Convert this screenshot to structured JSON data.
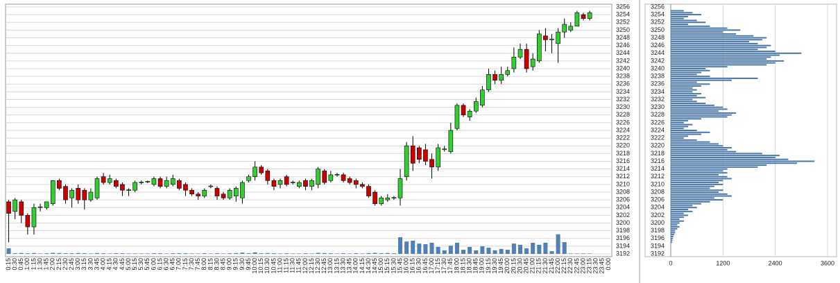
{
  "chart_data": [
    {
      "type": "candlestick",
      "categories": [
        "0:15",
        "0:30",
        "0:45",
        "1:00",
        "1:15",
        "1:30",
        "1:45",
        "2:00",
        "2:15",
        "2:30",
        "2:45",
        "3:00",
        "3:15",
        "3:30",
        "3:45",
        "4:00",
        "4:15",
        "4:30",
        "4:45",
        "5:00",
        "5:15",
        "5:30",
        "5:45",
        "6:00",
        "6:15",
        "6:30",
        "6:45",
        "7:00",
        "7:15",
        "7:30",
        "7:45",
        "8:00",
        "8:15",
        "8:30",
        "8:45",
        "9:00",
        "9:15",
        "9:30",
        "9:45",
        "10:00",
        "10:15",
        "10:30",
        "10:45",
        "11:00",
        "11:15",
        "11:30",
        "11:45",
        "12:00",
        "12:15",
        "12:30",
        "12:45",
        "13:00",
        "13:15",
        "13:30",
        "13:45",
        "14:00",
        "14:15",
        "14:30",
        "14:45",
        "15:00",
        "15:15",
        "15:30",
        "15:45",
        "16:00",
        "16:15",
        "16:30",
        "16:45",
        "17:00",
        "17:15",
        "17:30",
        "17:45",
        "18:00",
        "18:15",
        "18:30",
        "18:45",
        "19:00",
        "19:15",
        "19:30",
        "19:45",
        "20:00",
        "20:15",
        "20:30",
        "20:45",
        "21:00",
        "21:15",
        "21:30",
        "21:45",
        "22:00",
        "22:15",
        "22:30",
        "22:45",
        "23:00",
        "23:15",
        "23:30",
        "23:45",
        "0:00"
      ],
      "open": [
        3205.5,
        3203,
        3205.5,
        3202,
        3199,
        3204,
        3204,
        3205,
        3211,
        3209.5,
        3206.5,
        3209,
        3208.5,
        3206,
        3206.5,
        3212,
        3210.5,
        3211,
        3210,
        3208.5,
        3208.5,
        3210.5,
        3210.7,
        3210,
        3211.5,
        3209.5,
        3210,
        3211,
        3210,
        3208.5,
        3207.5,
        3207,
        3209.5,
        3209,
        3207.5,
        3206.5,
        3207,
        3206.5,
        3211,
        3212,
        3214.5,
        3213.5,
        3211,
        3210,
        3212,
        3210.5,
        3209.5,
        3211,
        3209.5,
        3210,
        3213.5,
        3211,
        3212.5,
        3212.5,
        3211.5,
        3211,
        3210,
        3209.5,
        3208,
        3205,
        3206,
        3206.5,
        3206.5,
        3212,
        3220,
        3219.5,
        3219,
        3216.5,
        3214.5,
        3219,
        3218.5,
        3224.5,
        3230.5,
        3227.5,
        3229,
        3230.5,
        3234.5,
        3238.5,
        3237,
        3238.5,
        3240,
        3243,
        3245,
        3240.5,
        3242,
        3248.5,
        3247.5,
        3246.5,
        3249.5,
        3250,
        3251,
        3254,
        3253,
        null,
        null,
        null
      ],
      "high": [
        3206,
        3206.5,
        3206,
        3202.5,
        3205,
        3205,
        3205.5,
        3211,
        3211.5,
        3210,
        3209,
        3210,
        3209,
        3209,
        3212,
        3213,
        3212.5,
        3211.5,
        3210.5,
        3209,
        3211,
        3211,
        3211,
        3212,
        3212,
        3212,
        3212.5,
        3211.5,
        3210.5,
        3209,
        3208,
        3209,
        3210,
        3209.5,
        3208,
        3209,
        3209.5,
        3211,
        3212.5,
        3216,
        3215,
        3214,
        3211.5,
        3211.5,
        3212.5,
        3211,
        3211,
        3211.5,
        3211.5,
        3214.5,
        3214,
        3213.5,
        3213,
        3213,
        3212,
        3211.5,
        3210.5,
        3210,
        3208.5,
        3207,
        3207.5,
        3207,
        3214,
        3221,
        3222.5,
        3220,
        3220.5,
        3218,
        3220.5,
        3220,
        3226,
        3231,
        3231,
        3229.5,
        3232.5,
        3235.5,
        3240,
        3239.5,
        3240.5,
        3240.5,
        3245.5,
        3246.5,
        3246.5,
        3244,
        3250,
        3250.5,
        3249,
        3250.5,
        3253,
        3252,
        3255,
        3254.5,
        3255,
        null,
        null,
        null
      ],
      "low": [
        3195,
        3201,
        3200,
        3197,
        3197,
        3203,
        3203.5,
        3204.5,
        3208.5,
        3205,
        3204,
        3205,
        3203.5,
        3205.5,
        3206,
        3210,
        3210,
        3209,
        3207,
        3207,
        3208,
        3210,
        3210.3,
        3209.5,
        3209,
        3209,
        3209.5,
        3208.5,
        3207,
        3207,
        3206,
        3206.5,
        3209,
        3206,
        3206,
        3206,
        3205.5,
        3205,
        3210.5,
        3211,
        3212.5,
        3210,
        3208.5,
        3209,
        3209.5,
        3210,
        3209,
        3208.5,
        3208.5,
        3209,
        3210,
        3210.5,
        3212,
        3210.5,
        3210,
        3209,
        3209,
        3206.5,
        3204.5,
        3204.5,
        3205.5,
        3206,
        3204.5,
        3211,
        3213.5,
        3215.5,
        3215,
        3211.5,
        3213.5,
        3218.5,
        3218,
        3224,
        3227.5,
        3226.5,
        3228.5,
        3230,
        3234,
        3236,
        3236,
        3238,
        3239,
        3242.5,
        3239,
        3239.5,
        3241.5,
        3244.5,
        3244,
        3241.5,
        3248,
        3249.5,
        3251,
        3252.5,
        3252.5,
        null,
        null,
        null
      ],
      "close": [
        3202.5,
        3206,
        3202,
        3199,
        3204,
        3204.2,
        3205.5,
        3211,
        3209,
        3206,
        3208.5,
        3206,
        3206,
        3208,
        3211.5,
        3210.5,
        3211.5,
        3209.5,
        3208.5,
        3208.6,
        3210.5,
        3210.6,
        3210.8,
        3211.5,
        3209.5,
        3211,
        3211.5,
        3209,
        3208.5,
        3207.5,
        3207,
        3208.5,
        3209.6,
        3207,
        3206.5,
        3208.5,
        3209,
        3210.5,
        3212,
        3214.5,
        3213,
        3211,
        3209.5,
        3211,
        3210,
        3210.6,
        3210.5,
        3209.5,
        3211,
        3214,
        3210.5,
        3212.5,
        3212.6,
        3211,
        3210.5,
        3210,
        3209.5,
        3207,
        3205,
        3206.5,
        3206.5,
        3206.6,
        3211.5,
        3220,
        3215.5,
        3216.5,
        3216,
        3214.5,
        3219.5,
        3219.2,
        3224,
        3230.5,
        3228,
        3229,
        3231.5,
        3234.5,
        3238.5,
        3237,
        3238.5,
        3239.5,
        3243,
        3245,
        3240,
        3242.5,
        3249,
        3247.5,
        3247.7,
        3249.5,
        3251.5,
        3251,
        3254.5,
        3253,
        3254.5,
        null,
        null,
        null
      ],
      "volume": [
        270,
        30,
        40,
        30,
        40,
        20,
        30,
        50,
        40,
        30,
        30,
        40,
        30,
        20,
        40,
        30,
        20,
        30,
        30,
        20,
        20,
        20,
        20,
        30,
        30,
        20,
        30,
        30,
        30,
        20,
        20,
        30,
        20,
        30,
        20,
        30,
        40,
        60,
        30,
        70,
        30,
        40,
        30,
        20,
        30,
        20,
        20,
        30,
        20,
        50,
        40,
        30,
        20,
        30,
        20,
        30,
        20,
        40,
        50,
        30,
        40,
        30,
        810,
        600,
        640,
        500,
        470,
        540,
        340,
        170,
        400,
        540,
        200,
        340,
        170,
        370,
        300,
        170,
        240,
        200,
        500,
        440,
        270,
        540,
        440,
        540,
        130,
        950,
        570,
        20,
        20,
        20,
        20,
        null,
        null,
        null
      ],
      "up_color": "#33cc33",
      "down_color": "#cc0000",
      "volume_color": "#4f7fb5",
      "ylim": [
        3192,
        3256
      ],
      "yticks": [
        3192,
        3194,
        3196,
        3198,
        3200,
        3202,
        3204,
        3206,
        3208,
        3210,
        3212,
        3214,
        3216,
        3218,
        3220,
        3222,
        3224,
        3226,
        3228,
        3230,
        3232,
        3234,
        3236,
        3238,
        3240,
        3242,
        3244,
        3246,
        3248,
        3250,
        3252,
        3254,
        3256
      ],
      "y2lim": [
        0,
        12000
      ],
      "grid": true
    },
    {
      "type": "bar",
      "orientation": "horizontal",
      "color": "#4a76a8",
      "categories": [
        3255,
        3254.5,
        3254,
        3253.5,
        3253,
        3252.5,
        3252,
        3251.5,
        3251,
        3250.5,
        3250,
        3249.5,
        3249,
        3248.5,
        3248,
        3247.5,
        3247,
        3246.5,
        3246,
        3245.5,
        3245,
        3244.5,
        3244,
        3243.5,
        3243,
        3242.5,
        3242,
        3241.5,
        3241,
        3240.5,
        3240,
        3239.5,
        3239,
        3238.5,
        3238,
        3237.5,
        3237,
        3236.5,
        3236,
        3235.5,
        3235,
        3234.5,
        3234,
        3233.5,
        3233,
        3232.5,
        3232,
        3231.5,
        3231,
        3230.5,
        3230,
        3229.5,
        3229,
        3228.5,
        3228,
        3227.5,
        3227,
        3226.5,
        3226,
        3225.5,
        3225,
        3224.5,
        3224,
        3223.5,
        3223,
        3222.5,
        3222,
        3221.5,
        3221,
        3220.5,
        3220,
        3219.5,
        3219,
        3218.5,
        3218,
        3217.5,
        3217,
        3216.5,
        3216,
        3215.5,
        3215,
        3214.5,
        3214,
        3213.5,
        3213,
        3212.5,
        3212,
        3211.5,
        3211,
        3210.5,
        3210,
        3209.5,
        3209,
        3208.5,
        3208,
        3207.5,
        3207,
        3206.5,
        3206,
        3205.5,
        3205,
        3204.5,
        3204,
        3203.5,
        3203,
        3202.5,
        3202,
        3201.5,
        3201,
        3200.5,
        3200,
        3199.5,
        3199,
        3198.5,
        3198,
        3197.5,
        3197,
        3196.5,
        3196,
        3195.5,
        3195
      ],
      "values": [
        300,
        500,
        700,
        400,
        300,
        600,
        800,
        400,
        900,
        1300,
        1600,
        1200,
        1500,
        1900,
        2200,
        2100,
        1800,
        2000,
        2300,
        2200,
        2000,
        2400,
        3000,
        2500,
        2300,
        2200,
        2600,
        2400,
        2200,
        1300,
        800,
        900,
        700,
        600,
        900,
        2000,
        1400,
        600,
        900,
        700,
        500,
        600,
        500,
        700,
        600,
        800,
        500,
        600,
        800,
        1000,
        1200,
        1300,
        1100,
        1500,
        1400,
        1300,
        700,
        400,
        300,
        500,
        400,
        300,
        600,
        900,
        700,
        400,
        300,
        600,
        900,
        1100,
        1200,
        1400,
        1300,
        1500,
        2100,
        2500,
        2400,
        2700,
        3300,
        2900,
        2200,
        2000,
        1300,
        1200,
        1300,
        1100,
        1300,
        1400,
        1200,
        1100,
        1200,
        1000,
        900,
        1200,
        1100,
        1300,
        1400,
        1000,
        1200,
        900,
        700,
        500,
        600,
        400,
        500,
        300,
        400,
        300,
        200,
        300,
        200,
        150,
        200,
        150,
        100,
        100,
        80,
        60,
        50,
        40,
        30
      ],
      "xlim": [
        0,
        3600
      ],
      "xticks": [
        0,
        1200,
        2400,
        3600
      ],
      "ylim": [
        3192,
        3256
      ],
      "yticks": [
        3192,
        3194,
        3196,
        3198,
        3200,
        3202,
        3204,
        3206,
        3208,
        3210,
        3212,
        3214,
        3216,
        3218,
        3220,
        3222,
        3224,
        3226,
        3228,
        3230,
        3232,
        3234,
        3236,
        3238,
        3240,
        3242,
        3244,
        3246,
        3248,
        3250,
        3252,
        3254,
        3256
      ],
      "grid": true
    }
  ]
}
